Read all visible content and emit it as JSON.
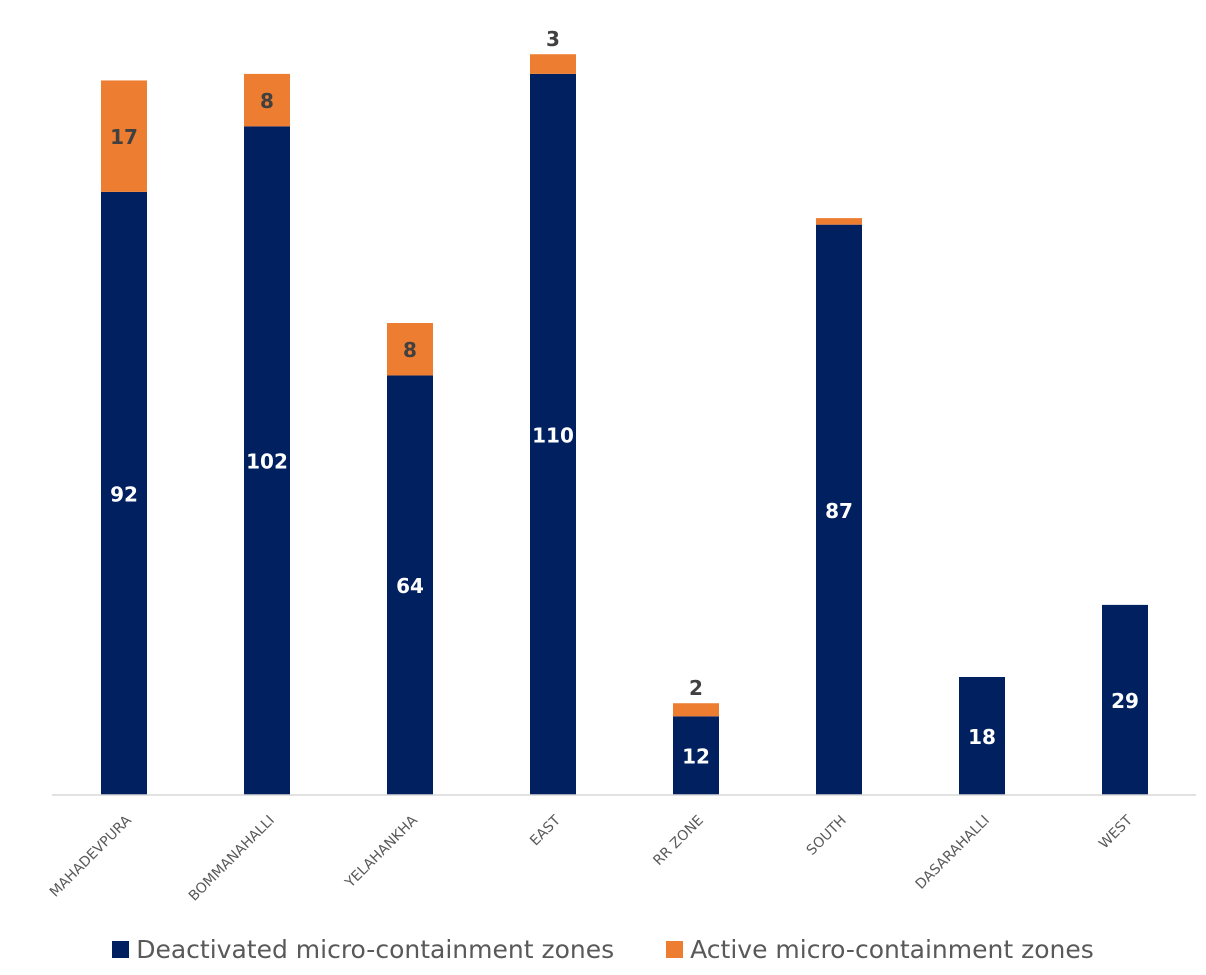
{
  "chart_data": {
    "type": "bar",
    "stacked": true,
    "categories": [
      "MAHADEVPURA",
      "BOMMANAHALLI",
      "YELAHANKHA",
      "EAST",
      "RR ZONE",
      "SOUTH",
      "DASARAHALLI",
      "WEST"
    ],
    "series": [
      {
        "name": "Deactivated micro-containment zones",
        "color": "#002060",
        "values": [
          92,
          102,
          64,
          110,
          12,
          87,
          18,
          29
        ],
        "labels": [
          "92",
          "102",
          "64",
          "110",
          "12",
          "87",
          "18",
          "29"
        ]
      },
      {
        "name": "Active micro-containment zones",
        "color": "#ED7D31",
        "values": [
          17,
          8,
          8,
          3,
          2,
          1,
          0,
          0
        ],
        "labels": [
          "17",
          "8",
          "8",
          "3",
          "2",
          "",
          "",
          ""
        ]
      }
    ],
    "ylim": [
      0,
      117
    ],
    "grid": false,
    "legend_position": "bottom",
    "x_tick_rotation": -45
  }
}
